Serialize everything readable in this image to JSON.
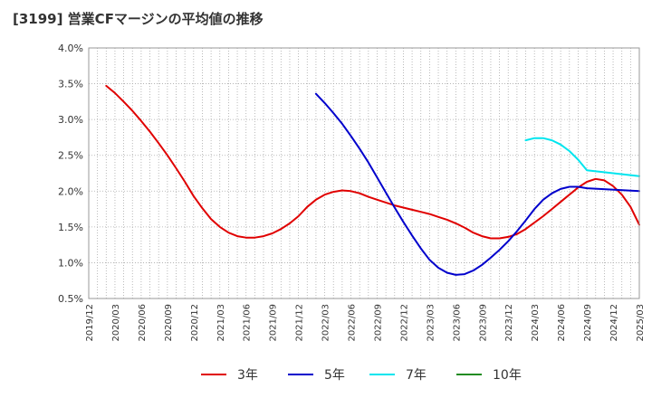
{
  "chart_data": {
    "type": "line",
    "title": "[3199]  営業CFマージンの平均値の推移",
    "xlabel": "",
    "ylabel": "",
    "ylim": [
      0.5,
      4.0
    ],
    "y_ticks": [
      "0.5%",
      "1.0%",
      "1.5%",
      "2.0%",
      "2.5%",
      "3.0%",
      "3.5%",
      "4.0%"
    ],
    "x_ticks": [
      "2019/12",
      "2020/03",
      "2020/06",
      "2020/09",
      "2020/12",
      "2021/03",
      "2021/06",
      "2021/09",
      "2021/12",
      "2022/03",
      "2022/06",
      "2022/09",
      "2022/12",
      "2023/03",
      "2023/06",
      "2023/09",
      "2023/12",
      "2024/03",
      "2024/06",
      "2024/09",
      "2024/12",
      "2025/03"
    ],
    "grid": true,
    "legend_position": "bottom",
    "series": [
      {
        "name": "3年",
        "color": "#e00000",
        "points": [
          [
            "2020/02",
            3.47
          ],
          [
            "2020/03",
            3.37
          ],
          [
            "2020/04",
            3.25
          ],
          [
            "2020/05",
            3.12
          ],
          [
            "2020/06",
            2.98
          ],
          [
            "2020/07",
            2.83
          ],
          [
            "2020/08",
            2.67
          ],
          [
            "2020/09",
            2.5
          ],
          [
            "2020/10",
            2.32
          ],
          [
            "2020/11",
            2.13
          ],
          [
            "2020/12",
            1.93
          ],
          [
            "2021/01",
            1.76
          ],
          [
            "2021/02",
            1.61
          ],
          [
            "2021/03",
            1.5
          ],
          [
            "2021/04",
            1.42
          ],
          [
            "2021/05",
            1.37
          ],
          [
            "2021/06",
            1.35
          ],
          [
            "2021/07",
            1.35
          ],
          [
            "2021/08",
            1.37
          ],
          [
            "2021/09",
            1.41
          ],
          [
            "2021/10",
            1.47
          ],
          [
            "2021/11",
            1.55
          ],
          [
            "2021/12",
            1.65
          ],
          [
            "2022/01",
            1.78
          ],
          [
            "2022/02",
            1.88
          ],
          [
            "2022/03",
            1.95
          ],
          [
            "2022/04",
            1.99
          ],
          [
            "2022/05",
            2.01
          ],
          [
            "2022/06",
            2.0
          ],
          [
            "2022/07",
            1.97
          ],
          [
            "2022/08",
            1.92
          ],
          [
            "2022/09",
            1.88
          ],
          [
            "2022/10",
            1.84
          ],
          [
            "2022/11",
            1.8
          ],
          [
            "2022/12",
            1.77
          ],
          [
            "2023/01",
            1.74
          ],
          [
            "2023/02",
            1.71
          ],
          [
            "2023/03",
            1.68
          ],
          [
            "2023/04",
            1.64
          ],
          [
            "2023/05",
            1.6
          ],
          [
            "2023/06",
            1.55
          ],
          [
            "2023/07",
            1.49
          ],
          [
            "2023/08",
            1.42
          ],
          [
            "2023/09",
            1.37
          ],
          [
            "2023/10",
            1.34
          ],
          [
            "2023/11",
            1.34
          ],
          [
            "2023/12",
            1.36
          ],
          [
            "2024/01",
            1.4
          ],
          [
            "2024/02",
            1.47
          ],
          [
            "2024/03",
            1.56
          ],
          [
            "2024/04",
            1.65
          ],
          [
            "2024/05",
            1.75
          ],
          [
            "2024/06",
            1.85
          ],
          [
            "2024/07",
            1.95
          ],
          [
            "2024/08",
            2.05
          ],
          [
            "2024/09",
            2.13
          ],
          [
            "2024/10",
            2.17
          ],
          [
            "2024/11",
            2.15
          ],
          [
            "2024/12",
            2.07
          ],
          [
            "2025/01",
            1.95
          ],
          [
            "2025/02",
            1.78
          ],
          [
            "2025/03",
            1.53
          ]
        ]
      },
      {
        "name": "5年",
        "color": "#0000cc",
        "points": [
          [
            "2022/02",
            3.36
          ],
          [
            "2022/03",
            3.23
          ],
          [
            "2022/04",
            3.09
          ],
          [
            "2022/05",
            2.94
          ],
          [
            "2022/06",
            2.77
          ],
          [
            "2022/07",
            2.59
          ],
          [
            "2022/08",
            2.4
          ],
          [
            "2022/09",
            2.19
          ],
          [
            "2022/10",
            1.98
          ],
          [
            "2022/11",
            1.77
          ],
          [
            "2022/12",
            1.57
          ],
          [
            "2023/01",
            1.38
          ],
          [
            "2023/02",
            1.2
          ],
          [
            "2023/03",
            1.04
          ],
          [
            "2023/04",
            0.93
          ],
          [
            "2023/05",
            0.86
          ],
          [
            "2023/06",
            0.83
          ],
          [
            "2023/07",
            0.84
          ],
          [
            "2023/08",
            0.89
          ],
          [
            "2023/09",
            0.97
          ],
          [
            "2023/10",
            1.07
          ],
          [
            "2023/11",
            1.18
          ],
          [
            "2023/12",
            1.3
          ],
          [
            "2024/01",
            1.44
          ],
          [
            "2024/02",
            1.59
          ],
          [
            "2024/03",
            1.75
          ],
          [
            "2024/04",
            1.88
          ],
          [
            "2024/05",
            1.97
          ],
          [
            "2024/06",
            2.03
          ],
          [
            "2024/07",
            2.06
          ],
          [
            "2024/08",
            2.06
          ],
          [
            "2024/09",
            2.04
          ],
          [
            "2025/03",
            2.0
          ]
        ]
      },
      {
        "name": "7年",
        "color": "#00e5ee",
        "points": [
          [
            "2024/02",
            2.71
          ],
          [
            "2024/03",
            2.74
          ],
          [
            "2024/04",
            2.74
          ],
          [
            "2024/05",
            2.71
          ],
          [
            "2024/06",
            2.65
          ],
          [
            "2024/07",
            2.56
          ],
          [
            "2024/08",
            2.44
          ],
          [
            "2024/09",
            2.29
          ],
          [
            "2025/03",
            2.21
          ]
        ]
      },
      {
        "name": "10年",
        "color": "#228b22",
        "points": []
      }
    ]
  }
}
